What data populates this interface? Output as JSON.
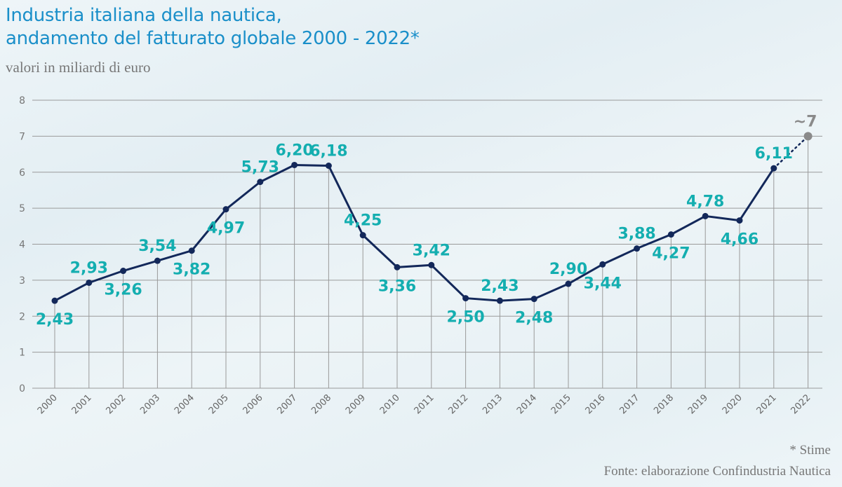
{
  "title_lines": [
    "Industria italiana della nautica,",
    "andamento del fatturato globale 2000 - 2022*"
  ],
  "subtitle": "valori in miliardi di euro",
  "footnote": "* Stime",
  "source": "Fonte: elaborazione Confindustria Nautica",
  "colors": {
    "title": "#1a8fc9",
    "line": "#13285a",
    "data_label": "#14aeb0",
    "estimate": "#8a8a8a",
    "grid": "#9a9a9a"
  },
  "chart_data": {
    "type": "line",
    "title": "Industria italiana della nautica, andamento del fatturato globale 2000 - 2022*",
    "subtitle": "valori in miliardi di euro",
    "xlabel": "",
    "ylabel": "",
    "ylim": [
      0,
      8
    ],
    "yticks": [
      "0",
      "1",
      "2",
      "3",
      "4",
      "5",
      "6",
      "7",
      "8"
    ],
    "grid": true,
    "x": [
      "2000",
      "2001",
      "2002",
      "2003",
      "2004",
      "2005",
      "2006",
      "2007",
      "2008",
      "2009",
      "2010",
      "2011",
      "2012",
      "2013",
      "2014",
      "2015",
      "2016",
      "2017",
      "2018",
      "2019",
      "2020",
      "2021",
      "2022"
    ],
    "series": [
      {
        "name": "Fatturato globale",
        "values": [
          2.43,
          2.93,
          3.26,
          3.54,
          3.82,
          4.97,
          5.73,
          6.2,
          6.18,
          4.25,
          3.36,
          3.42,
          2.5,
          2.43,
          2.48,
          2.9,
          3.44,
          3.88,
          4.27,
          4.78,
          4.66,
          6.11,
          7.0
        ],
        "labels": [
          "2,43",
          "2,93",
          "3,26",
          "3,54",
          "3,82",
          "4,97",
          "5,73",
          "6,20",
          "6,18",
          "4,25",
          "3,36",
          "3,42",
          "2,50",
          "2,43",
          "2,48",
          "2,90",
          "3,44",
          "3,88",
          "4,27",
          "4,78",
          "4,66",
          "6,11",
          "~7"
        ],
        "label_position": [
          "below",
          "above",
          "below",
          "above",
          "below",
          "below",
          "above",
          "above",
          "above",
          "above",
          "below",
          "above",
          "below",
          "above",
          "below",
          "above",
          "below",
          "above",
          "below",
          "above",
          "below",
          "above",
          "above"
        ],
        "estimated": [
          false,
          false,
          false,
          false,
          false,
          false,
          false,
          false,
          false,
          false,
          false,
          false,
          false,
          false,
          false,
          false,
          false,
          false,
          false,
          false,
          false,
          false,
          true
        ]
      }
    ],
    "annotations": [
      "* Stime",
      "Fonte: elaborazione Confindustria Nautica"
    ]
  }
}
